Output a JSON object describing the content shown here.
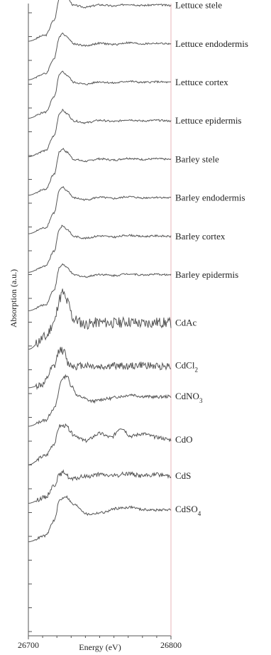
{
  "chart_data": {
    "type": "line",
    "title": "",
    "xlabel": "Energy (eV)",
    "ylabel": "Absorption (a.u.)",
    "xlim": [
      26700,
      26800
    ],
    "x_ticks": [
      "26700",
      "26800"
    ],
    "y_ticks_shown": false,
    "stacked": true,
    "grid": false,
    "legend": "inline labels at right end of each curve",
    "colors": {
      "line": "#555555",
      "axis": "#555555",
      "right_border": "#e8b4b8",
      "text": "#222222"
    },
    "series": [
      {
        "name": "Lettuce stele",
        "noise": 0.3,
        "x": [
          26700,
          26712,
          26718,
          26722,
          26724,
          26727,
          26732,
          26740,
          26750,
          26760,
          26770,
          26780,
          26790,
          26800
        ],
        "y": [
          0,
          1.0,
          3.5,
          7.3,
          7.8,
          7.2,
          6.0,
          5.7,
          6.1,
          5.9,
          6.2,
          6.0,
          6.1,
          6.0
        ]
      },
      {
        "name": "Lettuce endodermis",
        "noise": 0.3,
        "x": [
          26700,
          26712,
          26718,
          26722,
          26724,
          26727,
          26732,
          26740,
          26750,
          26760,
          26770,
          26780,
          26790,
          26800
        ],
        "y": [
          0,
          1.0,
          3.5,
          7.3,
          7.8,
          7.2,
          6.0,
          5.7,
          6.1,
          5.9,
          6.2,
          6.0,
          6.1,
          6.0
        ]
      },
      {
        "name": "Lettuce cortex",
        "noise": 0.3,
        "x": [
          26700,
          26712,
          26718,
          26722,
          26724,
          26727,
          26732,
          26740,
          26750,
          26760,
          26770,
          26780,
          26790,
          26800
        ],
        "y": [
          0,
          1.0,
          3.5,
          7.3,
          7.8,
          7.2,
          6.0,
          5.7,
          6.1,
          5.9,
          6.2,
          6.0,
          6.1,
          6.0
        ]
      },
      {
        "name": "Lettuce epidermis",
        "noise": 0.3,
        "x": [
          26700,
          26712,
          26718,
          26722,
          26724,
          26727,
          26732,
          26740,
          26750,
          26760,
          26770,
          26780,
          26790,
          26800
        ],
        "y": [
          0,
          1.0,
          3.5,
          7.3,
          7.8,
          7.2,
          6.0,
          5.7,
          6.1,
          5.9,
          6.2,
          6.0,
          6.1,
          6.0
        ]
      },
      {
        "name": "Barley stele",
        "noise": 0.3,
        "x": [
          26700,
          26712,
          26718,
          26722,
          26724,
          26727,
          26732,
          26740,
          26750,
          26760,
          26770,
          26780,
          26790,
          26800
        ],
        "y": [
          0,
          1.0,
          3.5,
          7.3,
          7.8,
          7.2,
          6.0,
          5.7,
          6.1,
          5.9,
          6.2,
          6.0,
          6.1,
          6.0
        ]
      },
      {
        "name": "Barley endodermis",
        "noise": 0.3,
        "x": [
          26700,
          26712,
          26718,
          26722,
          26724,
          26727,
          26732,
          26740,
          26750,
          26760,
          26770,
          26780,
          26790,
          26800
        ],
        "y": [
          0,
          1.0,
          3.5,
          7.3,
          7.8,
          7.2,
          6.0,
          5.7,
          6.1,
          5.9,
          6.2,
          6.0,
          6.1,
          6.0
        ]
      },
      {
        "name": "Barley cortex",
        "noise": 0.3,
        "x": [
          26700,
          26712,
          26718,
          26722,
          26724,
          26727,
          26732,
          26740,
          26750,
          26760,
          26770,
          26780,
          26790,
          26800
        ],
        "y": [
          0,
          1.0,
          3.5,
          7.3,
          7.8,
          7.2,
          6.0,
          5.7,
          6.1,
          5.9,
          6.2,
          6.0,
          6.1,
          6.0
        ]
      },
      {
        "name": "Barley epidermis",
        "noise": 0.3,
        "x": [
          26700,
          26712,
          26718,
          26722,
          26724,
          26727,
          26732,
          26740,
          26750,
          26760,
          26770,
          26780,
          26790,
          26800
        ],
        "y": [
          0,
          1.0,
          3.5,
          7.3,
          7.8,
          7.2,
          6.0,
          5.7,
          6.1,
          5.9,
          6.2,
          6.0,
          6.1,
          6.0
        ]
      },
      {
        "name": "CdAc",
        "noise": 1.8,
        "x": [
          26700,
          26712,
          26718,
          26722,
          26724,
          26727,
          26732,
          26740,
          26750,
          26760,
          26770,
          26780,
          26790,
          26800
        ],
        "y": [
          0,
          2.0,
          4.5,
          8.5,
          9.5,
          8.0,
          5.0,
          4.2,
          4.5,
          4.4,
          4.6,
          4.3,
          4.5,
          4.4
        ]
      },
      {
        "name": "CdCl2",
        "noise": 1.2,
        "x": [
          26700,
          26710,
          26718,
          26722,
          26725,
          26728,
          26733,
          26740,
          26750,
          26760,
          26770,
          26780,
          26790,
          26800
        ],
        "y": [
          0,
          0.5,
          3.5,
          6.5,
          6.0,
          4.0,
          3.6,
          3.8,
          3.5,
          3.7,
          3.6,
          3.8,
          3.6,
          3.7
        ]
      },
      {
        "name": "CdNO3",
        "noise": 0.5,
        "x": [
          26700,
          26712,
          26718,
          26724,
          26727,
          26730,
          26735,
          26745,
          26755,
          26765,
          26772,
          26780,
          26790,
          26800
        ],
        "y": [
          0,
          1.0,
          3.0,
          8.0,
          8.5,
          6.8,
          5.0,
          4.2,
          4.6,
          5.0,
          5.3,
          5.0,
          4.9,
          5.0
        ]
      },
      {
        "name": "CdO",
        "noise": 0.6,
        "x": [
          26700,
          26712,
          26718,
          26722,
          26726,
          26732,
          26740,
          26750,
          26758,
          26765,
          26772,
          26780,
          26790,
          26800
        ],
        "y": [
          0,
          1.5,
          3.5,
          6.5,
          6.5,
          5.0,
          4.0,
          5.2,
          4.6,
          6.2,
          4.8,
          5.2,
          4.6,
          4.2
        ]
      },
      {
        "name": "CdS",
        "noise": 0.7,
        "x": [
          26700,
          26712,
          26718,
          26722,
          26725,
          26730,
          26740,
          26750,
          26760,
          26770,
          26780,
          26790,
          26800
        ],
        "y": [
          0,
          1.0,
          3.0,
          4.8,
          5.2,
          4.0,
          4.5,
          4.8,
          4.6,
          5.0,
          4.6,
          4.8,
          4.6
        ]
      },
      {
        "name": "CdSO4",
        "noise": 0.4,
        "x": [
          26700,
          26712,
          26718,
          26722,
          26726,
          26732,
          26742,
          26752,
          26762,
          26772,
          26780,
          26790,
          26800
        ],
        "y": [
          0,
          1.0,
          3.5,
          7.0,
          7.6,
          6.2,
          4.6,
          4.9,
          5.6,
          5.8,
          5.4,
          5.3,
          5.4
        ]
      }
    ]
  }
}
